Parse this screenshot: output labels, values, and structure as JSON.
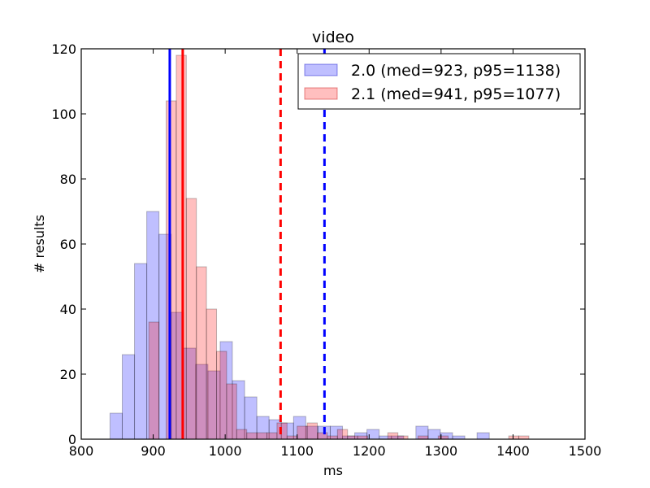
{
  "chart_data": {
    "type": "histogram",
    "title": "video",
    "xlabel": "ms",
    "ylabel": "# results",
    "xlim": [
      800,
      1500
    ],
    "ylim": [
      0,
      120
    ],
    "xticks": [
      800,
      900,
      1000,
      1100,
      1200,
      1300,
      1400,
      1500
    ],
    "yticks": [
      0,
      20,
      40,
      60,
      80,
      100,
      120
    ],
    "grid": false,
    "legend_position": "top-right",
    "series": [
      {
        "name": "2.0 (med=923, p95=1138)",
        "color": "#0000ff",
        "bars": [
          {
            "x0": 840,
            "x1": 857,
            "count": 8
          },
          {
            "x0": 857,
            "x1": 874,
            "count": 26
          },
          {
            "x0": 874,
            "x1": 891,
            "count": 54
          },
          {
            "x0": 891,
            "x1": 908,
            "count": 70
          },
          {
            "x0": 908,
            "x1": 925,
            "count": 63
          },
          {
            "x0": 925,
            "x1": 942,
            "count": 39
          },
          {
            "x0": 942,
            "x1": 959,
            "count": 28
          },
          {
            "x0": 959,
            "x1": 976,
            "count": 23
          },
          {
            "x0": 976,
            "x1": 993,
            "count": 21
          },
          {
            "x0": 993,
            "x1": 1010,
            "count": 30
          },
          {
            "x0": 1010,
            "x1": 1027,
            "count": 18
          },
          {
            "x0": 1027,
            "x1": 1044,
            "count": 13
          },
          {
            "x0": 1044,
            "x1": 1061,
            "count": 7
          },
          {
            "x0": 1061,
            "x1": 1078,
            "count": 6
          },
          {
            "x0": 1078,
            "x1": 1095,
            "count": 5
          },
          {
            "x0": 1095,
            "x1": 1112,
            "count": 7
          },
          {
            "x0": 1112,
            "x1": 1129,
            "count": 4
          },
          {
            "x0": 1129,
            "x1": 1146,
            "count": 4
          },
          {
            "x0": 1146,
            "x1": 1163,
            "count": 4
          },
          {
            "x0": 1163,
            "x1": 1180,
            "count": 1
          },
          {
            "x0": 1180,
            "x1": 1197,
            "count": 2
          },
          {
            "x0": 1197,
            "x1": 1214,
            "count": 3
          },
          {
            "x0": 1214,
            "x1": 1231,
            "count": 1
          },
          {
            "x0": 1231,
            "x1": 1248,
            "count": 1
          },
          {
            "x0": 1265,
            "x1": 1282,
            "count": 4
          },
          {
            "x0": 1282,
            "x1": 1299,
            "count": 3
          },
          {
            "x0": 1299,
            "x1": 1316,
            "count": 2
          },
          {
            "x0": 1316,
            "x1": 1333,
            "count": 1
          },
          {
            "x0": 1350,
            "x1": 1367,
            "count": 2
          }
        ],
        "median": 923,
        "p95": 1138
      },
      {
        "name": "2.1 (med=941, p95=1077)",
        "color": "#ff0000",
        "bars": [
          {
            "x0": 894,
            "x1": 908,
            "count": 36
          },
          {
            "x0": 908,
            "x1": 922,
            "count": 0
          },
          {
            "x0": 918,
            "x1": 932,
            "count": 104
          },
          {
            "x0": 932,
            "x1": 946,
            "count": 118
          },
          {
            "x0": 946,
            "x1": 960,
            "count": 74
          },
          {
            "x0": 960,
            "x1": 974,
            "count": 53
          },
          {
            "x0": 974,
            "x1": 988,
            "count": 40
          },
          {
            "x0": 988,
            "x1": 1002,
            "count": 27
          },
          {
            "x0": 1002,
            "x1": 1016,
            "count": 17
          },
          {
            "x0": 1016,
            "x1": 1030,
            "count": 3
          },
          {
            "x0": 1030,
            "x1": 1044,
            "count": 2
          },
          {
            "x0": 1044,
            "x1": 1058,
            "count": 2
          },
          {
            "x0": 1058,
            "x1": 1072,
            "count": 2
          },
          {
            "x0": 1072,
            "x1": 1086,
            "count": 5
          },
          {
            "x0": 1086,
            "x1": 1100,
            "count": 1
          },
          {
            "x0": 1100,
            "x1": 1114,
            "count": 4
          },
          {
            "x0": 1114,
            "x1": 1128,
            "count": 5
          },
          {
            "x0": 1128,
            "x1": 1142,
            "count": 2
          },
          {
            "x0": 1142,
            "x1": 1156,
            "count": 1
          },
          {
            "x0": 1156,
            "x1": 1170,
            "count": 3
          },
          {
            "x0": 1170,
            "x1": 1184,
            "count": 1
          },
          {
            "x0": 1184,
            "x1": 1198,
            "count": 1
          },
          {
            "x0": 1226,
            "x1": 1240,
            "count": 2
          },
          {
            "x0": 1240,
            "x1": 1254,
            "count": 1
          },
          {
            "x0": 1268,
            "x1": 1282,
            "count": 1
          },
          {
            "x0": 1296,
            "x1": 1310,
            "count": 1
          },
          {
            "x0": 1394,
            "x1": 1408,
            "count": 1
          },
          {
            "x0": 1408,
            "x1": 1422,
            "count": 1
          }
        ],
        "median": 941,
        "p95": 1077
      }
    ]
  }
}
